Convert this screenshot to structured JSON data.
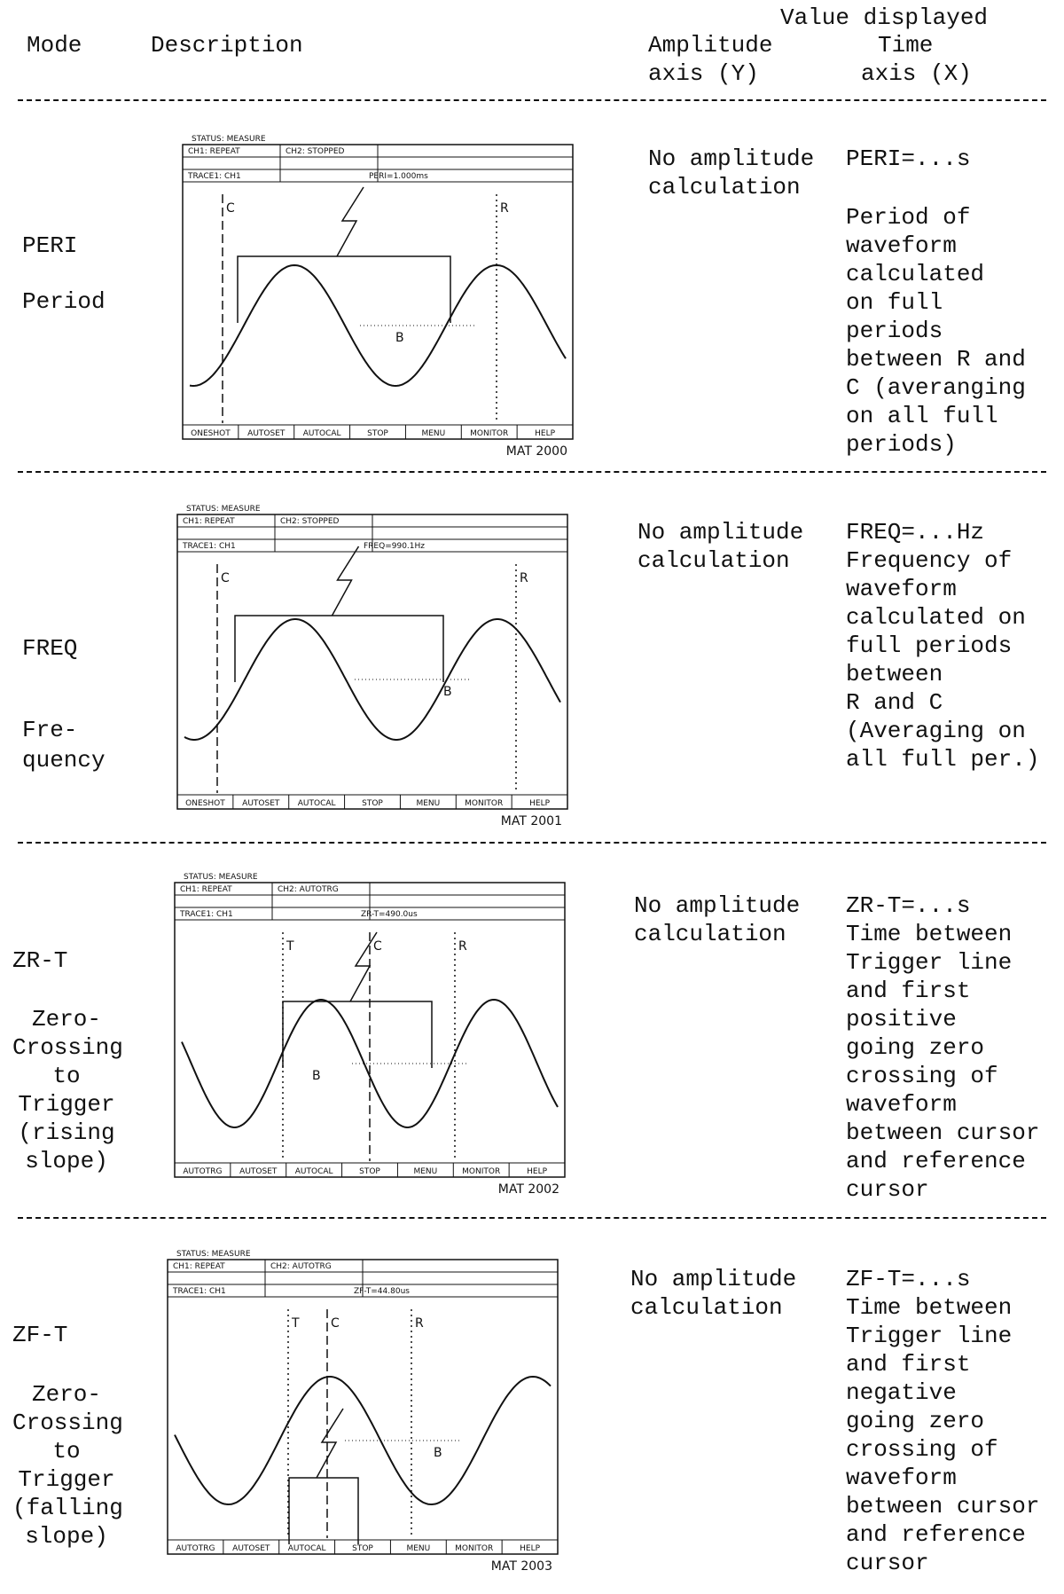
{
  "header": {
    "value_displayed": "Value displayed",
    "mode": "Mode",
    "description": "Description",
    "amplitude": [
      "Amplitude",
      "axis (Y)"
    ],
    "time": [
      "Time",
      "axis (X)"
    ]
  },
  "rows": [
    {
      "mode": [
        "PERI",
        "Period"
      ],
      "screen": {
        "status": [
          "STATUS: MEASURE",
          "CH1: REPEAT",
          "CH2: STOPPED",
          "TRACE1: CH1",
          "PERI=1.000ms"
        ],
        "cursors": [
          "C",
          "R"
        ],
        "marker": "B",
        "softkeys": [
          "ONESHOT",
          "AUTOSET",
          "AUTOCAL",
          "STOP",
          "MENU",
          "MONITOR",
          "HELP"
        ],
        "id": "MAT 2000"
      },
      "amplitude": [
        "No amplitude",
        "calculation"
      ],
      "time": [
        "PERI=...s",
        "Period of",
        "waveform",
        "calculated",
        "on full",
        "periods",
        "between R and",
        "C (averanging",
        "on all full",
        "periods)"
      ]
    },
    {
      "mode": [
        "FREQ",
        "Fre-",
        "quency"
      ],
      "screen": {
        "status": [
          "STATUS: MEASURE",
          "CH1: REPEAT",
          "CH2: STOPPED",
          "TRACE1: CH1",
          "FREQ=990.1Hz"
        ],
        "cursors": [
          "C",
          "R"
        ],
        "marker": "B",
        "softkeys": [
          "ONESHOT",
          "AUTOSET",
          "AUTOCAL",
          "STOP",
          "MENU",
          "MONITOR",
          "HELP"
        ],
        "id": "MAT 2001"
      },
      "amplitude": [
        "No amplitude",
        "calculation"
      ],
      "time": [
        "FREQ=...Hz",
        "Frequency of",
        "waveform",
        "calculated on",
        "full periods",
        "between",
        "R and C",
        "(Averaging on",
        "all full per.)"
      ]
    },
    {
      "mode": [
        "ZR-T",
        "Zero-",
        "Crossing",
        "to",
        "Trigger",
        "(rising",
        "slope)"
      ],
      "screen": {
        "status": [
          "STATUS: MEASURE",
          "CH1: REPEAT",
          "CH2: AUTOTRG",
          "TRACE1: CH1",
          "ZR-T=490.0us"
        ],
        "cursors": [
          "T",
          "C",
          "R"
        ],
        "marker": "B",
        "softkeys": [
          "AUTOTRG",
          "AUTOSET",
          "AUTOCAL",
          "STOP",
          "MENU",
          "MONITOR",
          "HELP"
        ],
        "id": "MAT 2002"
      },
      "amplitude": [
        "No amplitude",
        "calculation"
      ],
      "time": [
        "ZR-T=...s",
        "Time between",
        "Trigger line",
        "and first",
        "positive",
        "going zero",
        "crossing of",
        "waveform",
        "between cursor",
        "and reference",
        "cursor"
      ]
    },
    {
      "mode": [
        "ZF-T",
        "Zero-",
        "Crossing",
        "to",
        "Trigger",
        "(falling",
        "slope)"
      ],
      "screen": {
        "status": [
          "STATUS: MEASURE",
          "CH1: REPEAT",
          "CH2: AUTOTRG",
          "TRACE1: CH1",
          "ZF-T=44.80us"
        ],
        "cursors": [
          "T",
          "C",
          "R"
        ],
        "marker": "B",
        "softkeys": [
          "AUTOTRG",
          "AUTOSET",
          "AUTOCAL",
          "STOP",
          "MENU",
          "MONITOR",
          "HELP"
        ],
        "id": "MAT 2003"
      },
      "amplitude": [
        "No amplitude",
        "calculation"
      ],
      "time": [
        "ZF-T=...s",
        "Time between",
        "Trigger line",
        "and first",
        "negative",
        "going zero",
        "crossing of",
        "waveform",
        "between cursor",
        "and reference",
        "cursor"
      ]
    }
  ]
}
